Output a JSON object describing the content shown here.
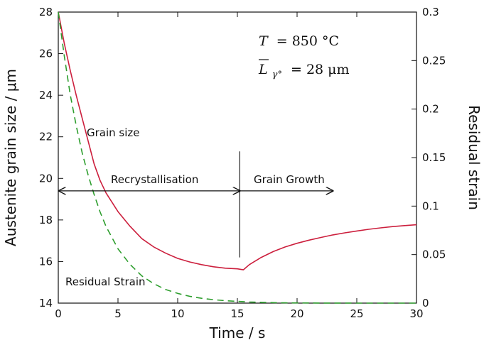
{
  "chart_data": {
    "type": "line",
    "xlabel": "Time / s",
    "ylabel_left": "Austenite grain size / μm",
    "ylabel_right": "Residual strain",
    "xlim": [
      0,
      30
    ],
    "ylim_left": [
      14,
      28
    ],
    "ylim_right": [
      0,
      0.3
    ],
    "grid": false,
    "x_ticks": [
      0,
      5,
      10,
      15,
      20,
      25,
      30
    ],
    "y_left_ticks": [
      14,
      16,
      18,
      20,
      22,
      24,
      26,
      28
    ],
    "y_right_ticks": [
      0,
      0.05,
      0.1,
      0.15,
      0.2,
      0.25,
      0.3
    ],
    "y_right_tick_labels": [
      "0",
      "0.05",
      "0.1",
      "0.15",
      "0.2",
      "0.25",
      "0.3"
    ],
    "series": [
      {
        "label": "Grain size",
        "axis": "left",
        "color": "#cc1f3d",
        "dash": "solid",
        "x": [
          0,
          0.5,
          1,
          1.5,
          2,
          2.5,
          3,
          3.5,
          4,
          5,
          6,
          7,
          8,
          9,
          10,
          11,
          12,
          13,
          14,
          15,
          15.5,
          16,
          17,
          18,
          19,
          20,
          21,
          22,
          23,
          24,
          25,
          26,
          27,
          28,
          29,
          30
        ],
        "y": [
          28,
          26.5,
          25.2,
          24.0,
          22.9,
          21.8,
          20.7,
          19.9,
          19.3,
          18.4,
          17.7,
          17.1,
          16.7,
          16.4,
          16.15,
          15.98,
          15.85,
          15.75,
          15.68,
          15.65,
          15.6,
          15.85,
          16.2,
          16.48,
          16.7,
          16.88,
          17.03,
          17.16,
          17.28,
          17.38,
          17.47,
          17.55,
          17.62,
          17.68,
          17.73,
          17.77
        ]
      },
      {
        "label": "Residual Strain",
        "axis": "right",
        "color": "#2e9e2e",
        "dash": "dashed",
        "x": [
          0,
          0.5,
          1,
          1.5,
          2,
          2.5,
          3,
          3.5,
          4,
          5,
          6,
          7,
          8,
          9,
          10,
          11,
          12,
          13,
          14,
          15,
          16,
          17,
          18,
          19,
          20,
          22,
          25,
          30
        ],
        "y": [
          0.3,
          0.255,
          0.215,
          0.183,
          0.155,
          0.132,
          0.112,
          0.094,
          0.079,
          0.056,
          0.04,
          0.028,
          0.02,
          0.014,
          0.01,
          0.007,
          0.005,
          0.0035,
          0.0025,
          0.0018,
          0.0012,
          0.0008,
          0.0005,
          0.0003,
          0.0002,
          0.0001,
          0,
          0
        ]
      }
    ],
    "annotations": {
      "grain_size_label": "Grain size",
      "residual_strain_label": "Residual Strain",
      "recrystallisation_label": "Recrystallisation",
      "grain_growth_label": "Grain Growth",
      "recrystallisation_range": [
        0,
        15.2
      ],
      "grain_growth_range": [
        15.2,
        23
      ],
      "arrow_level_left_axis": 19.4,
      "conditions": {
        "T_symbol": "T",
        "T_value": "= 850 °C",
        "L_symbol": "L",
        "L_subscript": "γ°",
        "L_value": "= 28 μm"
      }
    }
  }
}
